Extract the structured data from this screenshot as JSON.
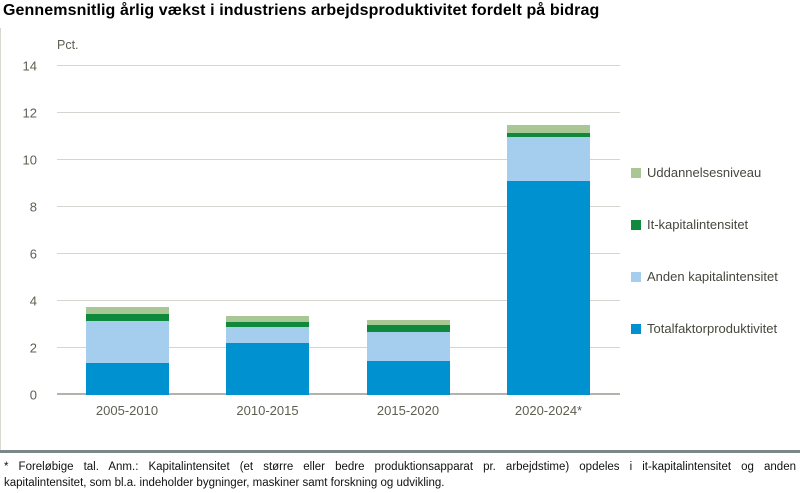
{
  "header": {
    "title": "Gennemsnitlig årlig vækst i industriens arbejdsproduktivitet fordelt på bidrag"
  },
  "chart_data": {
    "type": "bar",
    "stacked": true,
    "y_axis_unit_label": "Pct.",
    "categories": [
      "2005-2010",
      "2010-2015",
      "2015-2020",
      "2020-2024*"
    ],
    "series": [
      {
        "name": "Totalfaktorproduktivitet",
        "color": "#0091d1",
        "values": [
          1.35,
          2.2,
          1.45,
          9.1
        ]
      },
      {
        "name": "Anden kapitalintensitet",
        "color": "#a5cdee",
        "values": [
          1.8,
          0.7,
          1.25,
          1.9
        ]
      },
      {
        "name": "It-kapitalintensitet",
        "color": "#0f8a3c",
        "values": [
          0.3,
          0.2,
          0.3,
          0.15
        ]
      },
      {
        "name": "Uddannelsesniveau",
        "color": "#a8c794",
        "values": [
          0.3,
          0.25,
          0.2,
          0.35
        ]
      }
    ],
    "totals": [
      3.75,
      3.35,
      3.2,
      11.5
    ],
    "ylim": [
      0,
      14
    ],
    "yticks": [
      0,
      2,
      4,
      6,
      8,
      10,
      12,
      14
    ],
    "grid": true,
    "legend_position": "right",
    "legend_order": [
      "Uddannelsesniveau",
      "It-kapitalintensitet",
      "Anden kapitalintensitet",
      "Totalfaktorproduktivitet"
    ]
  },
  "footnote": {
    "lines": [
      "* Foreløbige tal. Anm.: Kapitalintensitet (et større eller bedre produktionsapparat pr. arbejdstime) opdeles i it-kapitalintensitet og anden",
      "kapitalintensitet, som bl.a. indeholder bygninger, maskiner samt forskning og udvikling."
    ]
  }
}
